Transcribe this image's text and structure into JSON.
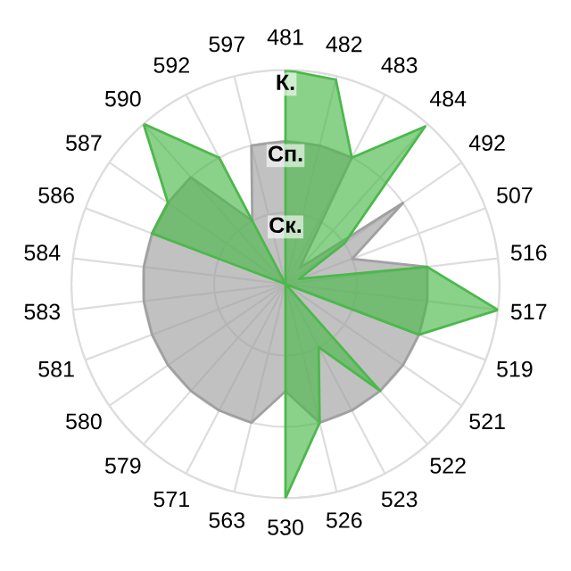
{
  "chart_data": {
    "type": "radar",
    "categories": [
      "481",
      "482",
      "483",
      "484",
      "492",
      "507",
      "516",
      "517",
      "519",
      "521",
      "522",
      "523",
      "526",
      "530",
      "563",
      "571",
      "579",
      "580",
      "581",
      "583",
      "584",
      "586",
      "587",
      "590",
      "592",
      "597"
    ],
    "series": [
      {
        "color": "#a0a0a0",
        "values": [
          2,
          2,
          2,
          0.3,
          2,
          1,
          2,
          2,
          2,
          2,
          2,
          2,
          2,
          1.5,
          2,
          2,
          2,
          2,
          2,
          2,
          2,
          2,
          2,
          2,
          1,
          2
        ]
      },
      {
        "color": "#4cb84c",
        "values": [
          3,
          2.95,
          2,
          2.95,
          1,
          0.2,
          2,
          3,
          2,
          0,
          2,
          1,
          2,
          3,
          0,
          0,
          0,
          0,
          0,
          0,
          0,
          2,
          2,
          3,
          2,
          0
        ]
      }
    ],
    "ylim": [
      0,
      3
    ],
    "yticks": [
      {
        "value": 1,
        "label": "Ск."
      },
      {
        "value": 2,
        "label": "Сп."
      },
      {
        "value": 3,
        "label": "К."
      }
    ],
    "grid": true
  }
}
